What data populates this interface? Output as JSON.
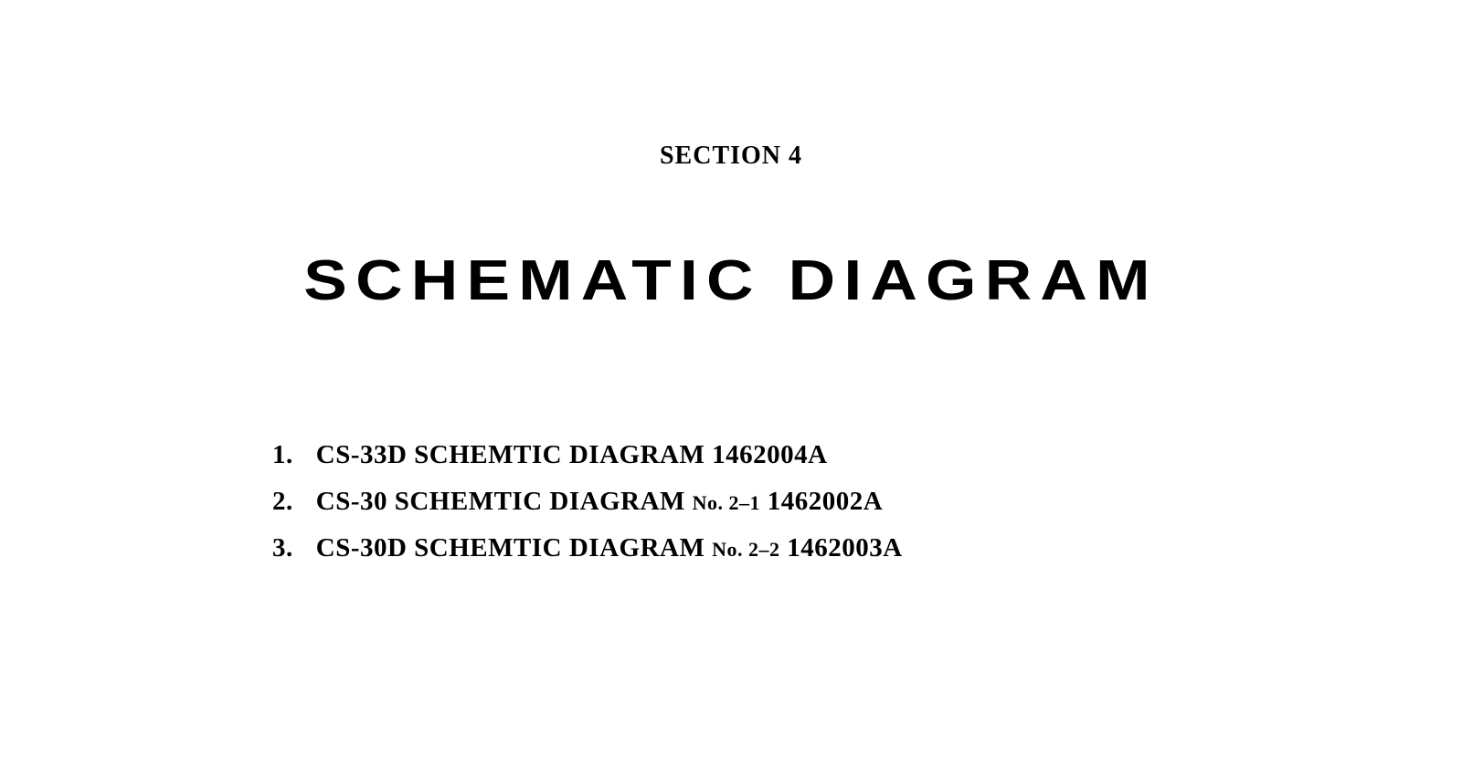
{
  "section_label": "SECTION 4",
  "main_title": "SCHEMATIC  DIAGRAM",
  "list_items": [
    {
      "number": "1.",
      "text_prefix": "CS-33D  SCHEMTIC  DIAGRAM  1462004A",
      "small_text": "",
      "text_suffix": ""
    },
    {
      "number": "2.",
      "text_prefix": "CS-30  SCHEMTIC  DIAGRAM  ",
      "small_text": "No. 2–1",
      "text_suffix": "  1462002A"
    },
    {
      "number": "3.",
      "text_prefix": "CS-30D  SCHEMTIC  DIAGRAM  ",
      "small_text": "No. 2–2",
      "text_suffix": "  1462003A"
    }
  ],
  "styling": {
    "background_color": "#ffffff",
    "text_color": "#000000",
    "section_label_fontsize": 28,
    "main_title_fontsize": 62,
    "list_fontsize": 29,
    "small_text_fontsize": 22,
    "main_title_letter_spacing": 8,
    "main_title_font_family": "Arial",
    "body_font_family": "Times New Roman"
  }
}
